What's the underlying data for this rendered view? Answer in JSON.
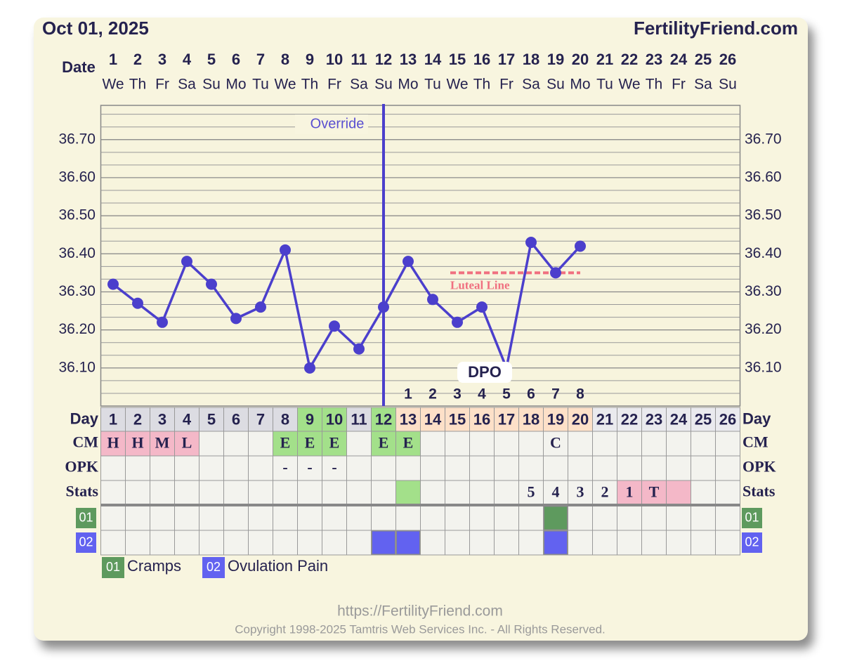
{
  "chart_data": {
    "type": "line",
    "title": "Oct 01, 2025",
    "site": "FertilityFriend.com",
    "date_label": "Date",
    "categories": [
      "1",
      "2",
      "3",
      "4",
      "5",
      "6",
      "7",
      "8",
      "9",
      "10",
      "11",
      "12",
      "13",
      "14",
      "15",
      "16",
      "17",
      "18",
      "19",
      "20",
      "21",
      "22",
      "23",
      "24",
      "25",
      "26"
    ],
    "weekdays": [
      "We",
      "Th",
      "Fr",
      "Sa",
      "Su",
      "Mo",
      "Tu",
      "We",
      "Th",
      "Fr",
      "Sa",
      "Su",
      "Mo",
      "Tu",
      "We",
      "Th",
      "Fr",
      "Sa",
      "Su",
      "Mo",
      "Tu",
      "We",
      "Th",
      "Fr",
      "Sa",
      "Su"
    ],
    "series": [
      {
        "color": "#4b3fcc",
        "values": [
          36.32,
          36.27,
          36.22,
          36.38,
          36.32,
          36.23,
          36.26,
          36.41,
          36.1,
          36.21,
          36.15,
          36.26,
          36.38,
          36.28,
          36.22,
          36.26,
          36.1,
          36.43,
          36.35,
          36.42,
          null,
          null,
          null,
          null,
          null,
          null
        ]
      }
    ],
    "ylim": [
      36.0,
      36.79
    ],
    "yticks": [
      {
        "value": 36.1,
        "label": "36.10"
      },
      {
        "value": 36.2,
        "label": "36.20"
      },
      {
        "value": 36.3,
        "label": "36.30"
      },
      {
        "value": 36.4,
        "label": "36.40"
      },
      {
        "value": 36.5,
        "label": "36.50"
      },
      {
        "value": 36.6,
        "label": "36.60"
      },
      {
        "value": 36.7,
        "label": "36.70"
      }
    ],
    "grid": true,
    "override": {
      "label": "Override",
      "day": 12
    },
    "luteal_line": {
      "label": "Luteal Line",
      "value": 36.35,
      "days": [
        15,
        20
      ],
      "color": "#f07080"
    },
    "dpo": {
      "label": "DPO",
      "values": [
        null,
        null,
        null,
        null,
        null,
        null,
        null,
        null,
        null,
        null,
        null,
        null,
        1,
        2,
        3,
        4,
        5,
        6,
        7,
        8,
        null,
        null,
        null,
        null,
        null,
        null
      ]
    },
    "day_row": {
      "label": "Day",
      "values": [
        1,
        2,
        3,
        4,
        5,
        6,
        7,
        8,
        9,
        10,
        11,
        12,
        13,
        14,
        15,
        16,
        17,
        18,
        19,
        20,
        21,
        22,
        23,
        24,
        25,
        26
      ],
      "fills": [
        "#dcdce2",
        "#dcdce2",
        "#dcdce2",
        "#dcdce2",
        "#dcdce2",
        "#dcdce2",
        "#dcdce2",
        "#dcdce2",
        "#a3e08a",
        "#a3e08a",
        "#dcdce2",
        "#a3e08a",
        "#fde0c8",
        "#fde0c8",
        "#fde0c8",
        "#fde0c8",
        "#fde0c8",
        "#fde0c8",
        "#fde0c8",
        "#fde0c8",
        "#eaeaee",
        "#eaeaee",
        "#eaeaee",
        "#eaeaee",
        "#eaeaee",
        "#eaeaee"
      ]
    },
    "cm": {
      "label": "CM",
      "values": [
        "H",
        "H",
        "M",
        "L",
        null,
        null,
        null,
        "E",
        "E",
        "E",
        null,
        "E",
        "E",
        null,
        null,
        null,
        null,
        null,
        "C",
        null,
        null,
        null,
        null,
        null,
        null,
        null
      ],
      "fills": [
        "#f4b8c8",
        "#f4b8c8",
        "#f4b8c8",
        "#f4b8c8",
        null,
        null,
        null,
        "#a3e08a",
        "#a3e08a",
        "#a3e08a",
        null,
        "#a3e08a",
        "#a3e08a",
        null,
        null,
        null,
        null,
        null,
        null,
        null,
        null,
        null,
        null,
        null,
        null,
        null
      ]
    },
    "opk": {
      "label": "OPK",
      "values": [
        null,
        null,
        null,
        null,
        null,
        null,
        null,
        "-",
        "-",
        "-",
        null,
        null,
        null,
        null,
        null,
        null,
        null,
        null,
        null,
        null,
        null,
        null,
        null,
        null,
        null,
        null
      ]
    },
    "stats": {
      "label": "Stats",
      "values": [
        null,
        null,
        null,
        null,
        null,
        null,
        null,
        null,
        null,
        null,
        null,
        null,
        null,
        null,
        null,
        null,
        null,
        5,
        4,
        3,
        2,
        1,
        "T",
        null,
        null,
        null
      ],
      "fills": [
        null,
        null,
        null,
        null,
        null,
        null,
        null,
        null,
        null,
        null,
        null,
        null,
        "#a3e08a",
        null,
        null,
        null,
        null,
        null,
        null,
        null,
        null,
        "#f4b8c8",
        "#f4b8c8",
        "#f4b8c8",
        null,
        null
      ]
    },
    "symptoms": [
      {
        "code": "01",
        "name": "Cramps",
        "color": "#5e9a5e",
        "days": [
          19
        ]
      },
      {
        "code": "02",
        "name": "Ovulation Pain",
        "color": "#6262f0",
        "days": [
          12,
          13,
          19
        ]
      }
    ],
    "footer": {
      "url": "https://FertilityFriend.com",
      "copyright": "Copyright 1998-2025 Tamtris Web Services Inc. - All Rights Reserved."
    }
  }
}
